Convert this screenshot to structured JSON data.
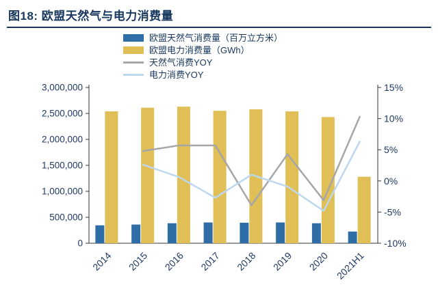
{
  "header": {
    "title": "图18:  欧盟天然气与电力消费量"
  },
  "colors": {
    "accent_navy": "#17375E",
    "gas_bar": "#2E6DA6",
    "power_bar": "#DFBF56",
    "gas_yoy_line": "#A6A6A6",
    "power_yoy_line": "#BDD7EE",
    "axis": "#333333"
  },
  "chart_data": {
    "type": "combo-bar-line",
    "categories": [
      "2014",
      "2015",
      "2016",
      "2017",
      "2018",
      "2019",
      "2020",
      "2021H1"
    ],
    "series": [
      {
        "name": "欧盟天然气消费量（百万立方米）",
        "type": "bar",
        "axis": "left",
        "color": "#2E6DA6",
        "values": [
          345000,
          360000,
          385000,
          400000,
          395000,
          400000,
          385000,
          225000
        ]
      },
      {
        "name": "欧盟电力消费量（GWh）",
        "type": "bar",
        "axis": "left",
        "color": "#DFBF56",
        "values": [
          2540000,
          2610000,
          2630000,
          2550000,
          2580000,
          2540000,
          2430000,
          1280000
        ]
      },
      {
        "name": "天然气消费YOY",
        "type": "line",
        "axis": "right",
        "color": "#A6A6A6",
        "values": [
          null,
          4.8,
          5.7,
          5.7,
          -3.9,
          4.3,
          -3.1,
          10.3
        ]
      },
      {
        "name": "电力消费YOY",
        "type": "line",
        "axis": "right",
        "color": "#BDD7EE",
        "values": [
          null,
          2.6,
          0.6,
          -2.7,
          1.0,
          -0.9,
          -4.8,
          6.3
        ]
      }
    ],
    "left_axis": {
      "min": 0,
      "max": 3000000,
      "step": 500000
    },
    "right_axis": {
      "min": -10,
      "max": 15,
      "step": 5,
      "format": "percent"
    },
    "grid": false,
    "legend_position": "top-center"
  }
}
